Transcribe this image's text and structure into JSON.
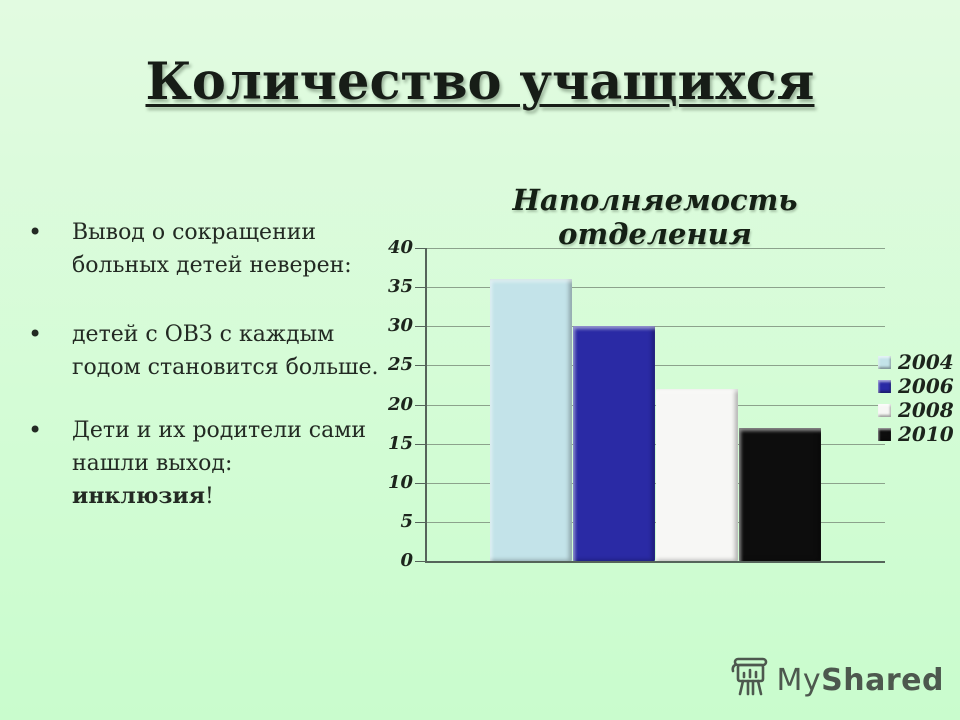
{
  "slide": {
    "title": "Количество учащихся"
  },
  "bullets": {
    "item1": "Вывод о сокращении больных детей неверен:",
    "item2": "детей с ОВЗ с каждым годом становится больше.",
    "item3_pre": "Дети и их родители сами нашли выход: ",
    "item3_bold": "инклюзия",
    "item3_post": "!"
  },
  "chart_data": {
    "type": "bar",
    "title": "Наполняемость отделения",
    "series": [
      {
        "name": "2004",
        "value": 36,
        "color": "#c3e3e9"
      },
      {
        "name": "2006",
        "value": 30,
        "color": "#2a2aa5"
      },
      {
        "name": "2008",
        "value": 22,
        "color": "#f7f7f5"
      },
      {
        "name": "2010",
        "value": 17,
        "color": "#0d0d0d"
      }
    ],
    "ylabel": "",
    "xlabel": "",
    "ylim": [
      0,
      40
    ],
    "ytick_step": 5,
    "grid": true,
    "legend_position": "right"
  },
  "logo": {
    "text_my": "My",
    "text_shared": "Shared"
  },
  "colors": {
    "background_top": "#e2fbe1",
    "background_bottom": "#c9fccd",
    "title_text": "#171d17",
    "body_text": "#232a23",
    "gridline": "#8ca28c",
    "axis": "#55645a",
    "logo_text": "#4d584e"
  }
}
